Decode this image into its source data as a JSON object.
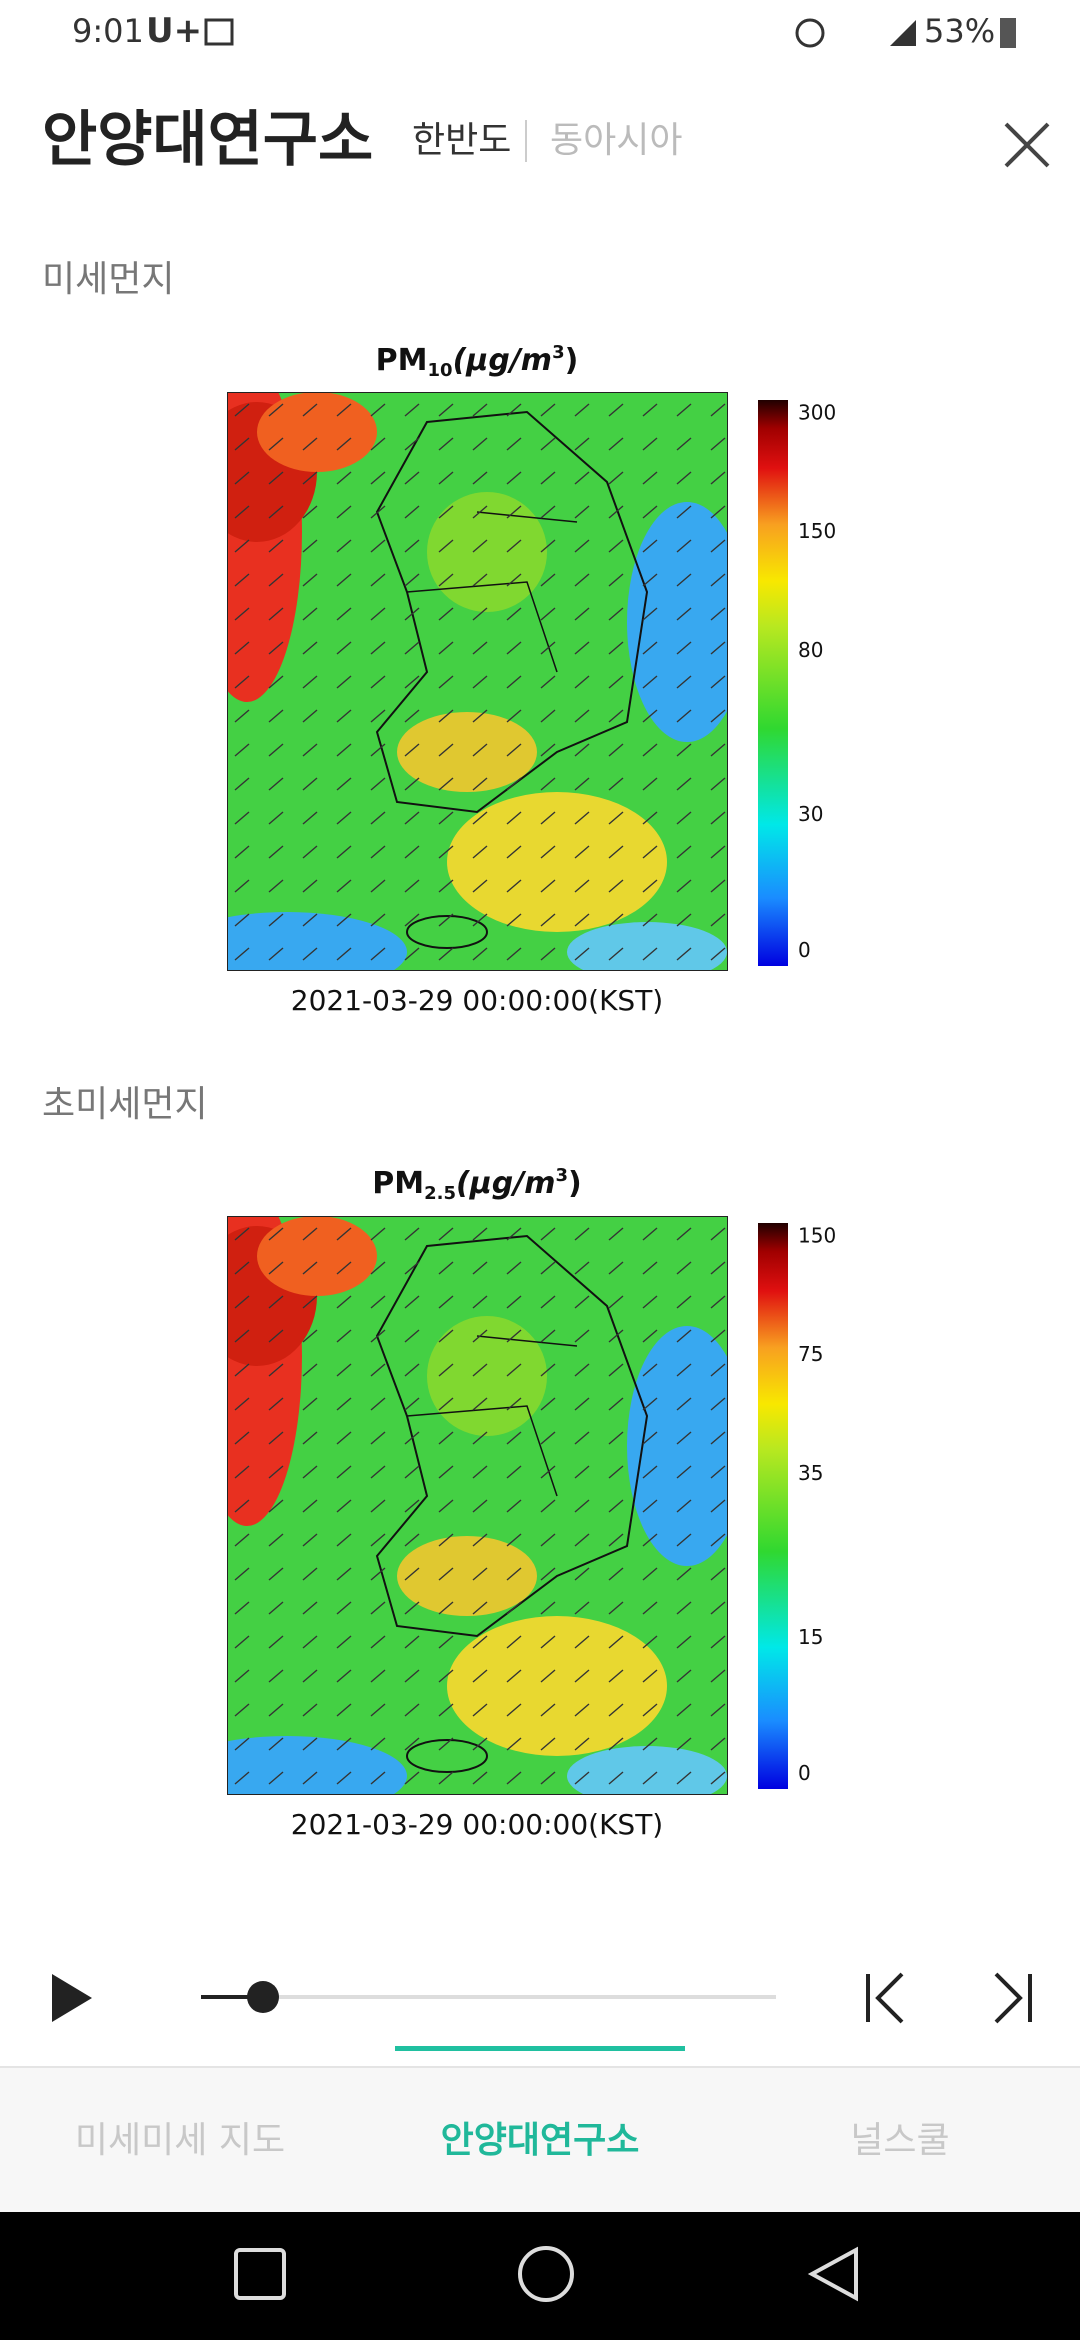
{
  "status_bar": {
    "time": "9:01",
    "carrier": "U+",
    "battery": "53%"
  },
  "header": {
    "title": "안양대연구소",
    "tabs": [
      "한반도",
      "동아시아"
    ]
  },
  "sections": [
    {
      "label": "미세먼지",
      "map": {
        "title": {
          "base": "PM",
          "sub": "10",
          "unit": "(μg/m",
          "sup": "3",
          "close": ")"
        },
        "scale_labels": [
          "300",
          "150",
          "80",
          "30",
          "0"
        ],
        "timestamp": "2021-03-29 00:00:00(KST)"
      }
    },
    {
      "label": "초미세먼지",
      "map": {
        "title": {
          "base": "PM",
          "sub": "2.5",
          "unit": "(μg/m",
          "sup": "3",
          "close": ")"
        },
        "scale_labels": [
          "150",
          "75",
          "35",
          "15",
          "0"
        ],
        "timestamp": "2021-03-29 00:00:00(KST)"
      }
    }
  ],
  "bottom_tabs": [
    "미세미세 지도",
    "안양대연구소",
    "널스쿨"
  ]
}
